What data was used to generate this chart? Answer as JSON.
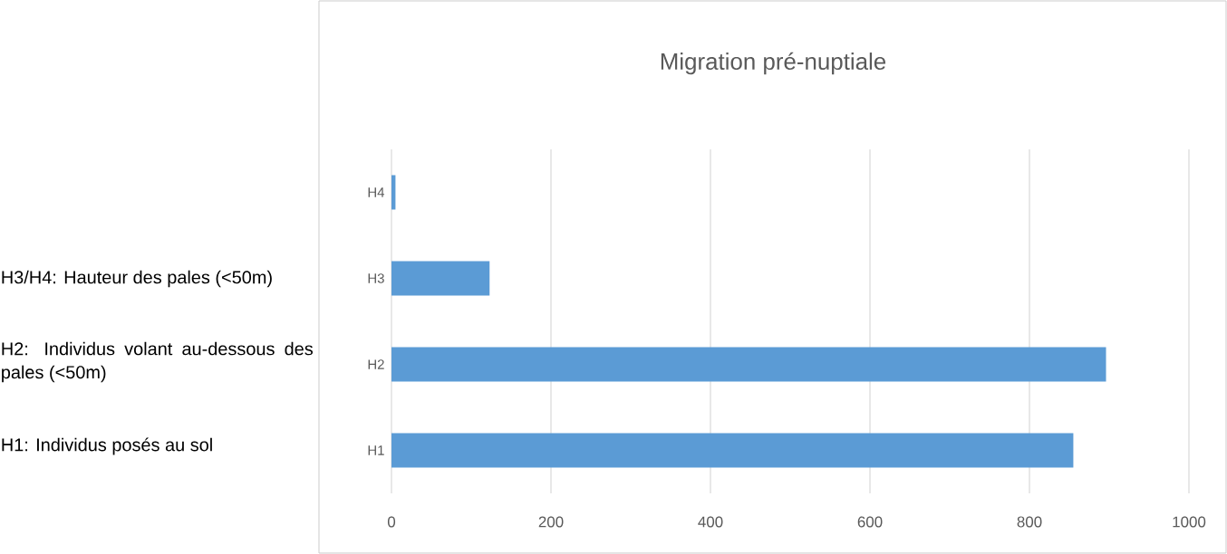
{
  "chart_data": {
    "type": "bar",
    "orientation": "horizontal",
    "title": "Migration pré-nuptiale",
    "categories": [
      "H4",
      "H3",
      "H2",
      "H1"
    ],
    "values": [
      5,
      123,
      896,
      855
    ],
    "color": "#5b9bd5",
    "xlim": [
      0,
      1000
    ],
    "xticks": [
      0,
      200,
      400,
      600,
      800,
      1000
    ],
    "grid": "x",
    "annotations": [
      "H3/H4: Hauteur des pales (<50m)",
      "H2: Individus volant au-dessous des pales (<50m)",
      "H1: Individus posés au sol"
    ]
  }
}
